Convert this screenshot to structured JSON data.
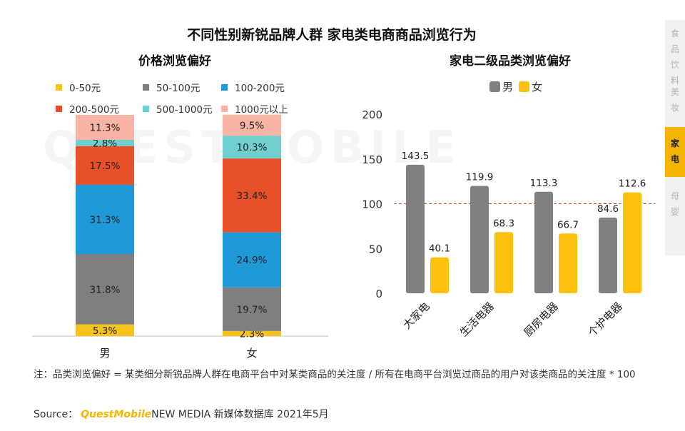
{
  "title": "不同性别新锐品牌人群 家电类电商商品浏览行为",
  "watermark": "QUESTMOBILE",
  "side_nav": {
    "items": [
      {
        "label": "食品饮料",
        "chars": [
          "食",
          "品",
          "饮",
          "料"
        ],
        "active": false
      },
      {
        "label": "美妆",
        "chars": [
          "美",
          "妆"
        ],
        "active": false
      },
      {
        "label": "家电",
        "chars": [
          "家",
          "电"
        ],
        "active": true
      },
      {
        "label": "母婴",
        "chars": [
          "母",
          "婴"
        ],
        "active": false
      }
    ]
  },
  "chart_data": [
    {
      "type": "bar",
      "stacked": true,
      "percent": true,
      "title": "价格浏览偏好",
      "categories": [
        "男",
        "女"
      ],
      "series": [
        {
          "name": "0-50元",
          "color": "#f6c21c",
          "values": [
            5.3,
            2.3
          ]
        },
        {
          "name": "50-100元",
          "color": "#7f7f7f",
          "values": [
            31.8,
            19.7
          ]
        },
        {
          "name": "100-200元",
          "color": "#1f9ad9",
          "values": [
            31.3,
            24.9
          ]
        },
        {
          "name": "200-500元",
          "color": "#e8502a",
          "values": [
            17.5,
            33.4
          ]
        },
        {
          "name": "500-1000元",
          "color": "#6fd0cf",
          "values": [
            2.8,
            10.3
          ]
        },
        {
          "name": "1000元以上",
          "color": "#f8b4a4",
          "values": [
            11.3,
            9.5
          ]
        }
      ],
      "labels": [
        [
          "5.3%",
          "31.8%",
          "31.3%",
          "17.5%",
          "2.8%",
          "11.3%"
        ],
        [
          "2.3%",
          "19.7%",
          "24.9%",
          "33.4%",
          "10.3%",
          "9.5%"
        ]
      ],
      "legend_position": "top"
    },
    {
      "type": "bar",
      "title": "家电二级品类浏览偏好",
      "categories": [
        "大家电",
        "生活电器",
        "厨房电器",
        "个护电器"
      ],
      "series": [
        {
          "name": "男",
          "color": "#808080",
          "values": [
            143.5,
            119.9,
            113.3,
            84.6
          ]
        },
        {
          "name": "女",
          "color": "#fcc00f",
          "values": [
            40.1,
            68.3,
            66.7,
            112.6
          ]
        }
      ],
      "ylim": [
        0,
        200
      ],
      "yticks": [
        "0",
        "50",
        "100",
        "150",
        "200"
      ],
      "reference_line": 100,
      "legend_position": "top"
    }
  ],
  "note": "注：品类浏览偏好 = 某类细分新锐品牌人群在电商平台中对某类商品的关注度 / 所有在电商平台浏览过商品的用户对该类商品的关注度 * 100",
  "source": {
    "prefix": "Source：",
    "brand": "QuestMobile",
    "rest": "NEW MEDIA 新媒体数据库 2021年5月"
  }
}
